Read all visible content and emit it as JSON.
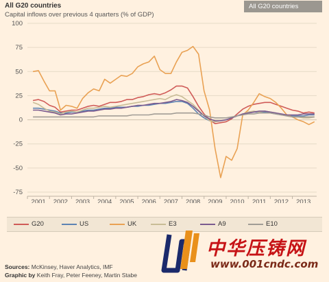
{
  "header": {
    "title": "All G20 countries",
    "subtitle": "Capital inflows over previous 4 quarters (% of GDP)",
    "dropdown_value": "All G20 countries"
  },
  "footer": {
    "sources_label": "Sources:",
    "sources": "McKinsey, Haver Analytics, IMF",
    "graphic_label": "Graphic by",
    "graphic": "Keith Fray, Peter Feeney, Martin Stabe"
  },
  "watermark": {
    "chinese": "中华压铸网",
    "url": "www.001cndc.com"
  },
  "chart_data": {
    "type": "line",
    "title": "All G20 countries",
    "subtitle": "Capital inflows over previous 4 quarters (% of GDP)",
    "xlabel": "",
    "ylabel": "",
    "xlim": [
      2000.5,
      2013.6
    ],
    "ylim": [
      -75,
      100
    ],
    "yticks": [
      100,
      75,
      50,
      25,
      0,
      -25,
      -50,
      -75
    ],
    "ytick_labels": [
      "100",
      "75",
      "50",
      "25",
      "0",
      "-25",
      "-50",
      "-75"
    ],
    "xticks": [
      2001,
      2002,
      2003,
      2004,
      2005,
      2006,
      2007,
      2008,
      2009,
      2010,
      2011,
      2012,
      2013
    ],
    "xtick_labels": [
      "2001",
      "2002",
      "2003",
      "2004",
      "2005",
      "2006",
      "2007",
      "2008",
      "2009",
      "2010",
      "2011",
      "2012",
      "2013"
    ],
    "grid": true,
    "legend_position": "bottom",
    "series": [
      {
        "name": "G20",
        "color": "#cf5a57",
        "x": [
          2000.75,
          2001,
          2001.25,
          2001.5,
          2001.75,
          2002,
          2002.25,
          2002.5,
          2002.75,
          2003,
          2003.25,
          2003.5,
          2003.75,
          2004,
          2004.25,
          2004.5,
          2004.75,
          2005,
          2005.25,
          2005.5,
          2005.75,
          2006,
          2006.25,
          2006.5,
          2006.75,
          2007,
          2007.25,
          2007.5,
          2007.75,
          2008,
          2008.25,
          2008.5,
          2008.75,
          2009,
          2009.25,
          2009.5,
          2009.75,
          2010,
          2010.25,
          2010.5,
          2010.75,
          2011,
          2011.25,
          2011.5,
          2011.75,
          2012,
          2012.25,
          2012.5,
          2012.75,
          2013,
          2013.25,
          2013.5
        ],
        "y": [
          20,
          21,
          19,
          15,
          13,
          8,
          9,
          10,
          10,
          12,
          14,
          15,
          14,
          16,
          18,
          18,
          19,
          21,
          21,
          23,
          24,
          26,
          27,
          26,
          28,
          31,
          35,
          35,
          33,
          24,
          14,
          6,
          0,
          -4,
          -3,
          -2,
          1,
          6,
          11,
          14,
          16,
          17,
          18,
          18,
          16,
          14,
          12,
          10,
          9,
          7,
          8,
          7
        ]
      },
      {
        "name": "US",
        "color": "#5d83b3",
        "x": [
          2000.75,
          2001,
          2001.25,
          2001.5,
          2001.75,
          2002,
          2002.25,
          2002.5,
          2002.75,
          2003,
          2003.25,
          2003.5,
          2003.75,
          2004,
          2004.25,
          2004.5,
          2004.75,
          2005,
          2005.25,
          2005.5,
          2005.75,
          2006,
          2006.25,
          2006.5,
          2006.75,
          2007,
          2007.25,
          2007.5,
          2007.75,
          2008,
          2008.25,
          2008.5,
          2008.75,
          2009,
          2009.25,
          2009.5,
          2009.75,
          2010,
          2010.25,
          2010.5,
          2010.75,
          2011,
          2011.25,
          2011.5,
          2011.75,
          2012,
          2012.25,
          2012.5,
          2012.75,
          2013,
          2013.25,
          2013.5
        ],
        "y": [
          12,
          12,
          11,
          10,
          9,
          7,
          7,
          8,
          8,
          9,
          10,
          10,
          11,
          12,
          12,
          13,
          13,
          13,
          14,
          14,
          15,
          15,
          16,
          17,
          17,
          18,
          19,
          19,
          17,
          12,
          6,
          2,
          -1,
          -2,
          -1,
          0,
          2,
          4,
          6,
          7,
          8,
          8,
          8,
          7,
          6,
          5,
          5,
          4,
          4,
          4,
          5,
          5
        ]
      },
      {
        "name": "UK",
        "color": "#e9a153",
        "x": [
          2000.75,
          2001,
          2001.25,
          2001.5,
          2001.75,
          2002,
          2002.25,
          2002.5,
          2002.75,
          2003,
          2003.25,
          2003.5,
          2003.75,
          2004,
          2004.25,
          2004.5,
          2004.75,
          2005,
          2005.25,
          2005.5,
          2005.75,
          2006,
          2006.25,
          2006.5,
          2006.75,
          2007,
          2007.25,
          2007.5,
          2007.75,
          2008,
          2008.25,
          2008.5,
          2008.75,
          2009,
          2009.25,
          2009.5,
          2009.75,
          2010,
          2010.25,
          2010.5,
          2010.75,
          2011,
          2011.25,
          2011.5,
          2011.75,
          2012,
          2012.25,
          2012.5,
          2012.75,
          2013,
          2013.25,
          2013.5
        ],
        "y": [
          50,
          51,
          40,
          30,
          30,
          10,
          15,
          14,
          12,
          22,
          28,
          32,
          30,
          42,
          38,
          42,
          46,
          45,
          48,
          55,
          58,
          60,
          66,
          52,
          48,
          48,
          60,
          70,
          72,
          76,
          68,
          30,
          10,
          -30,
          -60,
          -38,
          -42,
          -30,
          5,
          10,
          18,
          27,
          24,
          22,
          18,
          12,
          5,
          3,
          0,
          -2,
          -5,
          -2
        ]
      },
      {
        "name": "E3",
        "color": "#c8bc96",
        "x": [
          2000.75,
          2001,
          2001.25,
          2001.5,
          2001.75,
          2002,
          2002.25,
          2002.5,
          2002.75,
          2003,
          2003.25,
          2003.5,
          2003.75,
          2004,
          2004.25,
          2004.5,
          2004.75,
          2005,
          2005.25,
          2005.5,
          2005.75,
          2006,
          2006.25,
          2006.5,
          2006.75,
          2007,
          2007.25,
          2007.5,
          2007.75,
          2008,
          2008.25,
          2008.5,
          2008.75,
          2009,
          2009.25,
          2009.5,
          2009.75,
          2010,
          2010.25,
          2010.5,
          2010.75,
          2011,
          2011.25,
          2011.5,
          2011.75,
          2012,
          2012.25,
          2012.5,
          2012.75,
          2013,
          2013.25,
          2013.5
        ],
        "y": [
          18,
          16,
          12,
          9,
          8,
          6,
          8,
          9,
          8,
          10,
          12,
          12,
          13,
          14,
          13,
          14,
          15,
          16,
          17,
          18,
          19,
          20,
          21,
          22,
          21,
          24,
          26,
          24,
          20,
          16,
          10,
          4,
          -1,
          -2,
          -1,
          0,
          2,
          4,
          6,
          8,
          9,
          8,
          9,
          8,
          7,
          5,
          4,
          3,
          3,
          2,
          2,
          3
        ]
      },
      {
        "name": "A9",
        "color": "#7a5a8e",
        "x": [
          2000.75,
          2001,
          2001.25,
          2001.5,
          2001.75,
          2002,
          2002.25,
          2002.5,
          2002.75,
          2003,
          2003.25,
          2003.5,
          2003.75,
          2004,
          2004.25,
          2004.5,
          2004.75,
          2005,
          2005.25,
          2005.5,
          2005.75,
          2006,
          2006.25,
          2006.5,
          2006.75,
          2007,
          2007.25,
          2007.5,
          2007.75,
          2008,
          2008.25,
          2008.5,
          2008.75,
          2009,
          2009.25,
          2009.5,
          2009.75,
          2010,
          2010.25,
          2010.5,
          2010.75,
          2011,
          2011.25,
          2011.5,
          2011.75,
          2012,
          2012.25,
          2012.5,
          2012.75,
          2013,
          2013.25,
          2013.5
        ],
        "y": [
          10,
          10,
          9,
          8,
          7,
          5,
          6,
          6,
          7,
          8,
          9,
          9,
          10,
          11,
          11,
          12,
          12,
          13,
          14,
          15,
          15,
          16,
          17,
          17,
          18,
          19,
          21,
          20,
          18,
          14,
          9,
          4,
          1,
          -1,
          -1,
          0,
          2,
          4,
          6,
          7,
          8,
          9,
          9,
          8,
          7,
          6,
          5,
          5,
          5,
          6,
          6,
          6
        ]
      },
      {
        "name": "E10",
        "color": "#a09c95",
        "x": [
          2000.75,
          2001,
          2001.25,
          2001.5,
          2001.75,
          2002,
          2002.25,
          2002.5,
          2002.75,
          2003,
          2003.25,
          2003.5,
          2003.75,
          2004,
          2004.25,
          2004.5,
          2004.75,
          2005,
          2005.25,
          2005.5,
          2005.75,
          2006,
          2006.25,
          2006.5,
          2006.75,
          2007,
          2007.25,
          2007.5,
          2007.75,
          2008,
          2008.25,
          2008.5,
          2008.75,
          2009,
          2009.25,
          2009.5,
          2009.75,
          2010,
          2010.25,
          2010.5,
          2010.75,
          2011,
          2011.25,
          2011.5,
          2011.75,
          2012,
          2012.25,
          2012.5,
          2012.75,
          2013,
          2013.25,
          2013.5
        ],
        "y": [
          3,
          3,
          3,
          3,
          3,
          3,
          3,
          3,
          3,
          3,
          3,
          3,
          4,
          4,
          4,
          4,
          4,
          4,
          5,
          5,
          5,
          5,
          6,
          6,
          6,
          6,
          7,
          7,
          7,
          7,
          6,
          5,
          3,
          2,
          2,
          2,
          3,
          4,
          5,
          6,
          6,
          7,
          7,
          7,
          6,
          5,
          4,
          3,
          3,
          3,
          3,
          3
        ]
      }
    ]
  }
}
